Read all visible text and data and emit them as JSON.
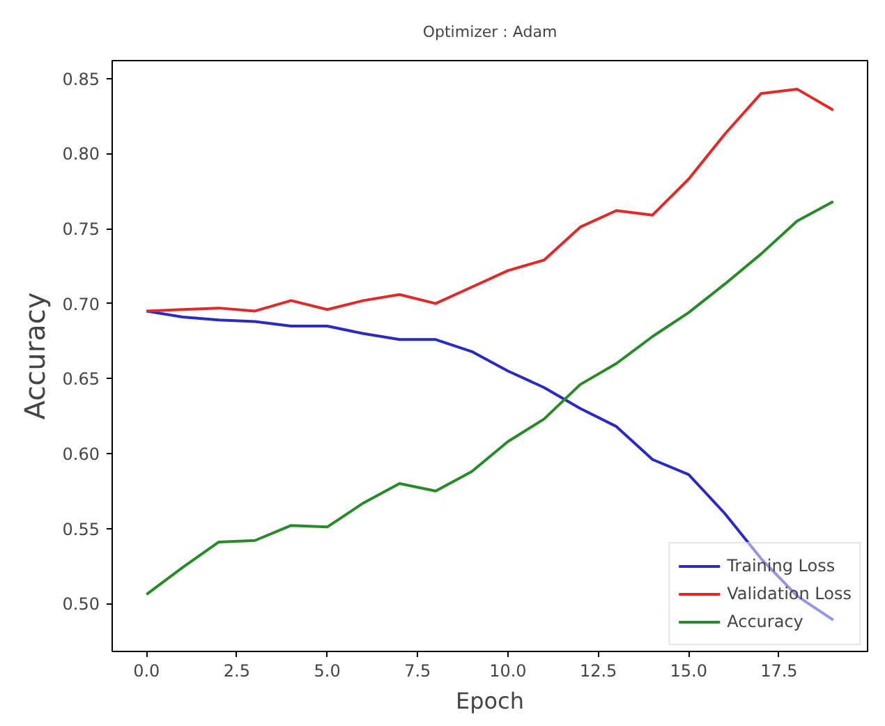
{
  "chart_data": {
    "type": "line",
    "title": "Optimizer : Adam",
    "xlabel": "Epoch",
    "ylabel": "Accuracy",
    "x": [
      0,
      1,
      2,
      3,
      4,
      5,
      6,
      7,
      8,
      9,
      10,
      11,
      12,
      13,
      14,
      15,
      16,
      17,
      18,
      19
    ],
    "series": [
      {
        "name": "Training Loss",
        "color": "#2a2ac0",
        "values": [
          0.695,
          0.691,
          0.689,
          0.688,
          0.685,
          0.685,
          0.68,
          0.676,
          0.676,
          0.668,
          0.655,
          0.644,
          0.63,
          0.618,
          0.596,
          0.586,
          0.56,
          0.53,
          0.505,
          0.489
        ]
      },
      {
        "name": "Validation Loss",
        "color": "#e02a2a",
        "values": [
          0.695,
          0.696,
          0.697,
          0.695,
          0.702,
          0.696,
          0.702,
          0.706,
          0.7,
          0.711,
          0.722,
          0.729,
          0.751,
          0.762,
          0.759,
          0.783,
          0.813,
          0.84,
          0.843,
          0.829
        ]
      },
      {
        "name": "Accuracy",
        "color": "#2a8a2a",
        "values": [
          0.506,
          0.524,
          0.541,
          0.542,
          0.552,
          0.551,
          0.567,
          0.58,
          0.575,
          0.588,
          0.608,
          0.623,
          0.646,
          0.66,
          0.678,
          0.694,
          0.713,
          0.733,
          0.755,
          0.768
        ]
      }
    ],
    "xlim": [
      -0.95,
      19.95
    ],
    "ylim": [
      0.468,
      0.862
    ],
    "xticks": [
      {
        "value": 0,
        "label": "0.0"
      },
      {
        "value": 2.5,
        "label": "2.5"
      },
      {
        "value": 5,
        "label": "5.0"
      },
      {
        "value": 7.5,
        "label": "7.5"
      },
      {
        "value": 10,
        "label": "10.0"
      },
      {
        "value": 12.5,
        "label": "12.5"
      },
      {
        "value": 15,
        "label": "15.0"
      },
      {
        "value": 17.5,
        "label": "17.5"
      }
    ],
    "yticks": [
      {
        "value": 0.5,
        "label": "0.50"
      },
      {
        "value": 0.55,
        "label": "0.55"
      },
      {
        "value": 0.6,
        "label": "0.60"
      },
      {
        "value": 0.65,
        "label": "0.65"
      },
      {
        "value": 0.7,
        "label": "0.70"
      },
      {
        "value": 0.75,
        "label": "0.75"
      },
      {
        "value": 0.8,
        "label": "0.80"
      },
      {
        "value": 0.85,
        "label": "0.85"
      }
    ],
    "grid": false,
    "legend": "bottom right",
    "marker": "none",
    "line_style": "solid"
  }
}
